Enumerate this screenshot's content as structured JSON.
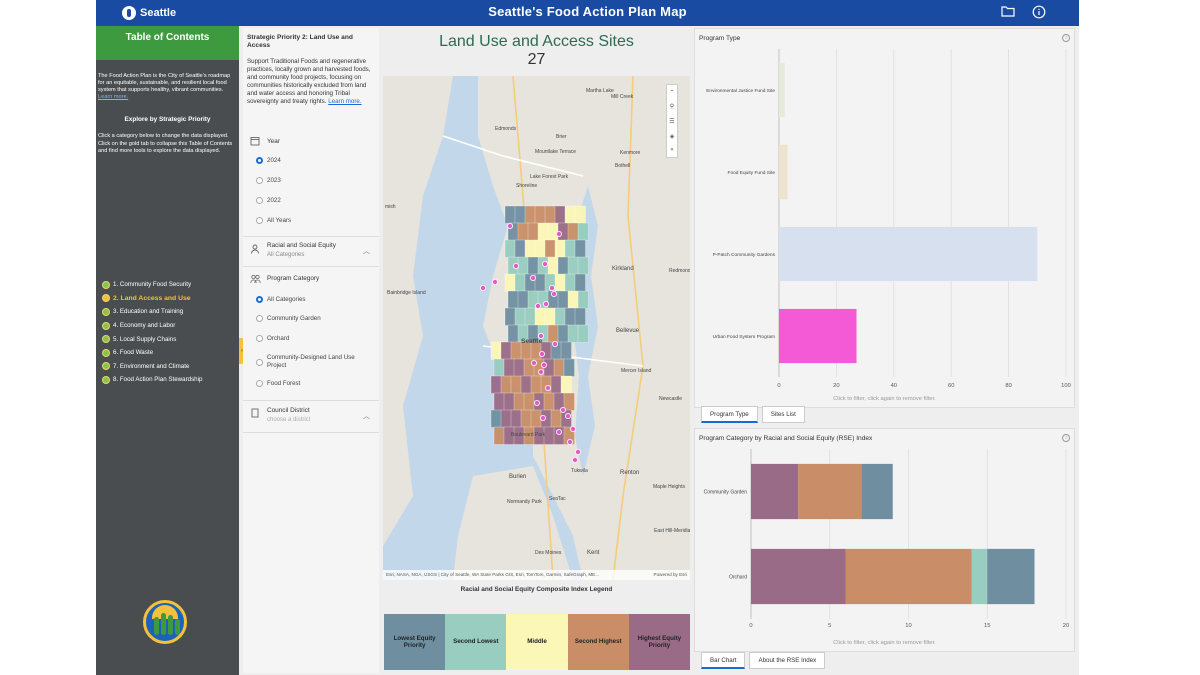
{
  "header": {
    "brand": "Seattle",
    "title": "Seattle's Food Action Plan Map",
    "icons": [
      "folder-icon",
      "info-icon"
    ]
  },
  "toc": {
    "title": "Table of Contents",
    "intro": "The Food Action Plan is the City of Seattle's roadmap for an equitable, sustainable, and resilient local food system that supports healthy, vibrant communities.",
    "learn_more": "Learn more.",
    "explore_title": "Explore by Strategic Priority",
    "instructions": "Click a category below to change the data displayed. Click on the gold tab to collapse this Table of Contents and find more tools to explore the data displayed.",
    "items": [
      {
        "label": "1. Community Food Security",
        "active": false
      },
      {
        "label": "2. Land Access and Use",
        "active": true
      },
      {
        "label": "3. Education and Training",
        "active": false
      },
      {
        "label": "4. Economy and Labor",
        "active": false
      },
      {
        "label": "5. Local Supply Chains",
        "active": false
      },
      {
        "label": "6. Food Waste",
        "active": false
      },
      {
        "label": "7. Environment and Climate",
        "active": false
      },
      {
        "label": "8. Food Action Plan Stewardship",
        "active": false
      }
    ]
  },
  "filters": {
    "priority_title": "Strategic Priority 2: Land Use and Access",
    "priority_desc": "Support Traditional Foods and regenerative practices, locally grown and harvested foods, and community food projects, focusing on communities historically excluded from land and water access and honoring Tribal sovereignty and treaty rights.",
    "learn_more": "Learn more.",
    "year": {
      "label": "Year",
      "options": [
        "2024",
        "2023",
        "2022",
        "All Years"
      ],
      "selected": "2024"
    },
    "rse": {
      "label": "Racial and Social Equity",
      "value": "All Categories"
    },
    "program_category": {
      "label": "Program Category",
      "options": [
        "All Categories",
        "Community Garden",
        "Orchard",
        "Community-Designed Land Use Project",
        "Food Forest"
      ],
      "selected": "All Categories"
    },
    "council": {
      "label": "Council District",
      "placeholder": "choose a district"
    }
  },
  "map": {
    "title": "Land Use and Access Sites",
    "count": "27",
    "places": [
      "Martha Lake",
      "Mill Creek",
      "Edmonds",
      "Brier",
      "Mountlake Terrace",
      "Kenmore",
      "Lake Forest Park",
      "Bothell",
      "Shoreline",
      "Kirkland",
      "Redmond",
      "Bainbridge Island",
      "Bellevue",
      "Seattle",
      "Mercer Island",
      "Newcastle",
      "Tukwila",
      "Renton",
      "Burien",
      "SeaTac",
      "Normandy Park",
      "Boulevard Park",
      "Des Moines",
      "Kent",
      "Maple Heights",
      "East Hill-Meridian",
      "mish"
    ],
    "attribution": "Esri, NASA, NGA, USGS | City of Seattle, WA State Parks GIS, Esri, TomTom, Garmin, SafeGraph, ME...",
    "powered_by": "Powered by Esri",
    "legend_title": "Racial and Social Equity Composite Index Legend",
    "legend": [
      {
        "label": "Lowest Equity Priority",
        "color": "#6f8fa1"
      },
      {
        "label": "Second Lowest",
        "color": "#98cdbf"
      },
      {
        "label": "Middle",
        "color": "#fbf7b6"
      },
      {
        "label": "Second Highest",
        "color": "#c98e68"
      },
      {
        "label": "Highest Equity Priority",
        "color": "#9a6b86"
      }
    ]
  },
  "program_type_chart": {
    "title": "Program Type",
    "filter_note": "Click to filter, click again to remove filter.",
    "tabs": [
      "Program Type",
      "Sites List"
    ],
    "active_tab": "Program Type",
    "chart_data": {
      "type": "bar",
      "orientation": "horizontal",
      "categories": [
        "Environmental Justice Fund Site",
        "Food Equity Fund Site",
        "P-Patch Community Gardens",
        "Urban Food System Program"
      ],
      "values": [
        2,
        3,
        90,
        27
      ],
      "colors": [
        "#e5ebd8",
        "#ece4cf",
        "#d6e0ee",
        "#f55ad6"
      ],
      "xlim": [
        0,
        100
      ],
      "xticks": [
        "0",
        "20",
        "40",
        "60",
        "80",
        "100"
      ],
      "grid": true
    }
  },
  "rse_chart": {
    "title": "Program Category by Racial and Social Equity (RSE) Index",
    "filter_note": "Click to filter, click again to remove filter.",
    "tabs": [
      "Bar Chart",
      "About the RSE Index"
    ],
    "active_tab": "Bar Chart",
    "chart_data": {
      "type": "bar",
      "orientation": "horizontal",
      "stacked": true,
      "categories": [
        "Community Garden",
        "Orchard"
      ],
      "series": [
        {
          "color": "#9a6b86",
          "values": [
            3,
            6
          ]
        },
        {
          "color": "#c98e68",
          "values": [
            4,
            8
          ]
        },
        {
          "color": "#98cdbf",
          "values": [
            0,
            1
          ]
        },
        {
          "color": "#6f8fa1",
          "values": [
            2,
            3
          ]
        }
      ],
      "xlim": [
        0,
        20
      ],
      "xticks": [
        "0",
        "5",
        "10",
        "15",
        "20"
      ],
      "grid": true
    }
  }
}
